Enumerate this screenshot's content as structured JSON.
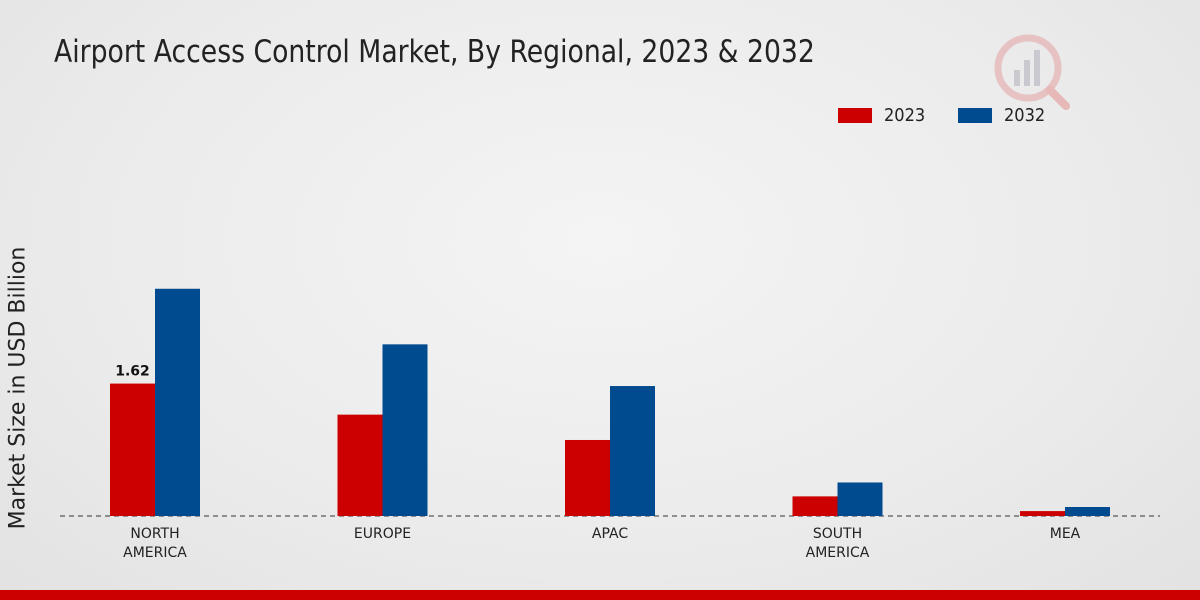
{
  "chart_data": {
    "type": "bar",
    "title": "Airport Access Control Market, By Regional, 2023 & 2032",
    "xlabel": "",
    "ylabel": "Market Size in USD Billion",
    "ylim": [
      0,
      4.6
    ],
    "categories": [
      "NORTH\nAMERICA",
      "EUROPE",
      "APAC",
      "SOUTH\nAMERICA",
      "MEA"
    ],
    "series": [
      {
        "name": "2023",
        "color": "#cc0000",
        "values": [
          1.62,
          1.24,
          0.93,
          0.24,
          0.06
        ]
      },
      {
        "name": "2032",
        "color": "#004a8f",
        "values": [
          2.78,
          2.1,
          1.59,
          0.41,
          0.11
        ]
      }
    ],
    "data_labels": [
      {
        "series": 0,
        "index": 0,
        "text": "1.62"
      }
    ],
    "legend_position": "top-right",
    "grid": false
  }
}
